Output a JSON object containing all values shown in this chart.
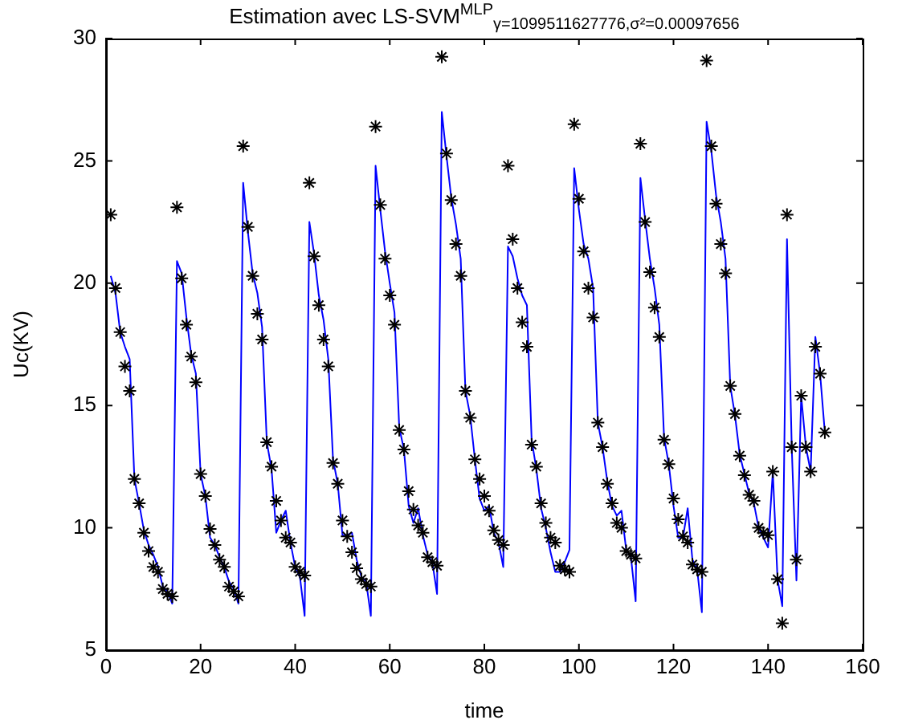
{
  "chart_data": {
    "type": "line",
    "title": "Estimation avec LS-SVM$^{MLP}$$_{γ=1099511627776,σ²=0.00097656}$",
    "xlabel": "time",
    "ylabel": "Uc(KV)",
    "x": [
      1,
      2,
      3,
      4,
      5,
      6,
      7,
      8,
      9,
      10,
      11,
      12,
      13,
      14,
      15,
      16,
      17,
      18,
      19,
      20,
      21,
      22,
      23,
      24,
      25,
      26,
      27,
      28,
      29,
      30,
      31,
      32,
      33,
      34,
      35,
      36,
      37,
      38,
      39,
      40,
      41,
      42,
      43,
      44,
      45,
      46,
      47,
      48,
      49,
      50,
      51,
      52,
      53,
      54,
      55,
      56,
      57,
      58,
      59,
      60,
      61,
      62,
      63,
      64,
      65,
      66,
      67,
      68,
      69,
      70,
      71,
      72,
      73,
      74,
      75,
      76,
      77,
      78,
      79,
      80,
      81,
      82,
      83,
      84,
      85,
      86,
      87,
      88,
      89,
      90,
      91,
      92,
      93,
      94,
      95,
      96,
      97,
      98,
      99,
      100,
      101,
      102,
      103,
      104,
      105,
      106,
      107,
      108,
      109,
      110,
      111,
      112,
      113,
      114,
      115,
      116,
      117,
      118,
      119,
      120,
      121,
      122,
      123,
      124,
      125,
      126,
      127,
      128,
      129,
      130,
      131,
      132,
      133,
      134,
      135,
      136,
      137,
      138,
      139,
      140,
      141,
      142,
      143,
      144,
      145,
      146,
      147,
      148,
      149,
      150,
      151,
      152
    ],
    "series": [
      {
        "color": "#0000ff",
        "values": [
          20.3,
          19.6,
          18.0,
          17.4,
          16.9,
          12.0,
          11.0,
          9.9,
          9.3,
          8.9,
          8.4,
          7.6,
          7.4,
          6.9,
          20.9,
          20.4,
          18.6,
          17.1,
          16.3,
          12.2,
          11.3,
          9.6,
          9.3,
          8.8,
          8.4,
          7.8,
          7.5,
          6.9,
          24.1,
          22.1,
          20.4,
          19.6,
          18.2,
          13.5,
          12.4,
          9.8,
          10.3,
          10.7,
          9.4,
          8.4,
          8.0,
          6.4,
          22.5,
          21.2,
          19.5,
          18.5,
          16.9,
          12.8,
          11.8,
          9.7,
          9.7,
          9.8,
          8.7,
          8.0,
          7.8,
          6.4,
          24.8,
          23.0,
          21.3,
          20.0,
          18.8,
          14.1,
          13.2,
          10.9,
          10.2,
          10.8,
          9.7,
          8.9,
          8.6,
          7.3,
          27.0,
          25.2,
          23.5,
          22.4,
          21.0,
          15.6,
          14.6,
          12.8,
          11.2,
          10.7,
          10.9,
          9.8,
          9.4,
          8.4,
          21.5,
          21.1,
          20.2,
          19.5,
          19.1,
          13.6,
          12.4,
          10.8,
          10.0,
          9.0,
          8.2,
          8.2,
          8.6,
          9.1,
          24.7,
          23.0,
          21.6,
          21.0,
          19.8,
          14.3,
          13.3,
          11.9,
          10.9,
          10.5,
          10.7,
          9.1,
          8.8,
          7.0,
          24.3,
          22.6,
          21.0,
          19.8,
          18.3,
          13.7,
          12.6,
          10.9,
          9.6,
          9.6,
          10.8,
          8.7,
          8.3,
          6.55,
          26.6,
          25.4,
          23.6,
          22.5,
          21.0,
          15.8,
          14.6,
          13.0,
          12.2,
          11.4,
          11.0,
          10.0,
          9.6,
          9.2,
          12.3,
          7.9,
          6.8,
          21.8,
          13.3,
          7.85,
          15.4,
          13.3,
          12.3,
          17.8,
          16.3,
          13.9
        ]
      },
      {
        "type": "scatter",
        "color": "#000000",
        "marker": "cross",
        "values": [
          22.8,
          19.8,
          18.0,
          16.6,
          15.6,
          12.0,
          11.0,
          9.8,
          9.05,
          8.4,
          8.2,
          7.5,
          7.3,
          7.2,
          23.1,
          20.2,
          18.3,
          17.0,
          15.95,
          12.2,
          11.3,
          9.95,
          9.3,
          8.7,
          8.4,
          7.6,
          7.4,
          7.2,
          25.6,
          22.3,
          20.3,
          18.75,
          17.7,
          13.5,
          12.5,
          11.1,
          10.3,
          9.6,
          9.4,
          8.4,
          8.2,
          8.05,
          24.1,
          21.1,
          19.1,
          17.7,
          16.6,
          12.65,
          11.8,
          10.3,
          9.65,
          9.0,
          8.35,
          7.9,
          7.7,
          7.6,
          26.4,
          23.2,
          21.0,
          19.5,
          18.3,
          14.0,
          13.2,
          11.5,
          10.75,
          10.1,
          9.8,
          8.8,
          8.6,
          8.45,
          29.25,
          25.3,
          23.4,
          21.6,
          20.3,
          15.6,
          14.5,
          12.8,
          12.0,
          11.3,
          10.7,
          9.9,
          9.5,
          9.3,
          24.8,
          21.8,
          19.8,
          18.4,
          17.4,
          13.4,
          12.5,
          11.0,
          10.2,
          9.6,
          9.4,
          8.45,
          8.3,
          8.2,
          26.5,
          23.45,
          21.3,
          19.8,
          18.6,
          14.3,
          13.3,
          11.8,
          11.0,
          10.2,
          10.0,
          9.05,
          8.9,
          8.75,
          25.7,
          22.5,
          20.45,
          19.0,
          17.8,
          13.6,
          12.6,
          11.2,
          10.35,
          9.65,
          9.4,
          8.5,
          8.3,
          8.2,
          29.1,
          25.6,
          23.25,
          21.6,
          20.4,
          15.8,
          14.65,
          12.95,
          12.15,
          11.35,
          11.1,
          10.0,
          9.8,
          9.7,
          12.3,
          7.9,
          6.1,
          22.8,
          13.3,
          8.7,
          15.4,
          13.3,
          12.3,
          17.4,
          16.3,
          13.9
        ]
      }
    ],
    "xlim": [
      0,
      160
    ],
    "xticks": [
      0,
      20,
      40,
      60,
      80,
      100,
      120,
      140,
      160
    ],
    "ylim": [
      5,
      30
    ],
    "yticks": [
      5,
      10,
      15,
      20,
      25,
      30
    ],
    "grid": false,
    "legend": false
  }
}
